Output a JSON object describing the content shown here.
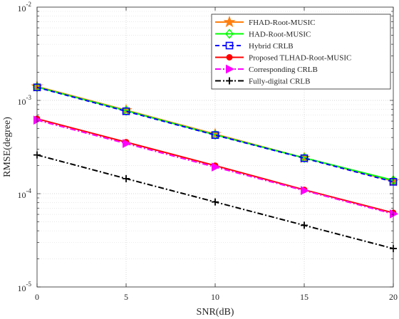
{
  "chart_data": {
    "type": "line",
    "xlabel": "SNR(dB)",
    "ylabel": "RMSE(degree)",
    "yscale": "log",
    "xlim": [
      0,
      20
    ],
    "ylim": [
      1e-05,
      0.01
    ],
    "grid": true,
    "legend_position": "top-right",
    "x": [
      0,
      5,
      10,
      15,
      20
    ],
    "x_tick_labels": [
      "0",
      "5",
      "10",
      "15",
      "20"
    ],
    "y_tick_labels": [
      {
        "base": "10",
        "exp": "-5"
      },
      {
        "base": "10",
        "exp": "-4"
      },
      {
        "base": "10",
        "exp": "-3"
      },
      {
        "base": "10",
        "exp": "-2"
      }
    ],
    "series": [
      {
        "name": "FHAD-Root-MUSIC",
        "color": "#ff7f0e",
        "marker": "star",
        "line": "solid",
        "values": [
          0.00141,
          0.000785,
          0.000435,
          0.000242,
          0.000136
        ]
      },
      {
        "name": "HAD-Root-MUSIC",
        "color": "#00ff00",
        "marker": "diamond",
        "line": "solid",
        "values": [
          0.00139,
          0.000775,
          0.000428,
          0.000242,
          0.000139
        ]
      },
      {
        "name": "Hybrid CRLB",
        "color": "#0000ff",
        "marker": "square",
        "line": "dashed",
        "values": [
          0.00138,
          0.000765,
          0.000425,
          0.00024,
          0.000134
        ]
      },
      {
        "name": "Proposed TLHAD-Root-MUSIC",
        "color": "#ff0000",
        "marker": "circle",
        "line": "solid",
        "values": [
          0.000635,
          0.000357,
          0.0002,
          0.00011,
          6.23e-05
        ]
      },
      {
        "name": "Corresponding CRLB",
        "color": "#ff00ff",
        "marker": "triangle-right",
        "line": "dashdot",
        "values": [
          0.000615,
          0.000345,
          0.000193,
          0.000108,
          6.07e-05
        ]
      },
      {
        "name": "Fully-digital CRLB",
        "color": "#000000",
        "marker": "plus",
        "line": "dashdot",
        "values": [
          0.00026,
          0.000145,
          8.15e-05,
          4.58e-05,
          2.58e-05
        ]
      }
    ]
  }
}
